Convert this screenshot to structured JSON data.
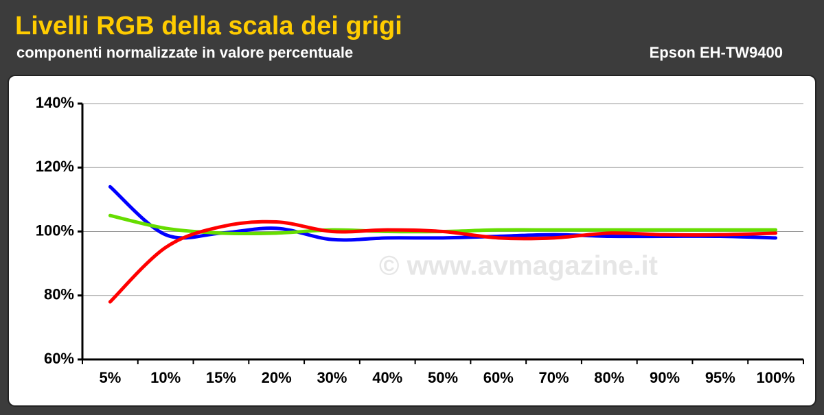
{
  "chart_data": {
    "type": "line",
    "title": "Livelli RGB della scala dei grigi",
    "subtitle": "componenti normalizzate in valore percentuale",
    "device": "Epson EH-TW9400",
    "watermark": "© www.avmagazine.it",
    "categories": [
      "5%",
      "10%",
      "15%",
      "20%",
      "30%",
      "40%",
      "50%",
      "60%",
      "70%",
      "80%",
      "90%",
      "95%",
      "100%"
    ],
    "series": [
      {
        "name": "Blu",
        "color": "#0000ff",
        "values": [
          114,
          99,
          99.5,
          101,
          97.5,
          98,
          98,
          98.5,
          99,
          98.5,
          98.5,
          98.5,
          98
        ]
      },
      {
        "name": "Verde",
        "color": "#66dd00",
        "values": [
          105,
          101,
          99.5,
          99.5,
          100.5,
          100,
          100,
          100.5,
          100.5,
          100.5,
          100.5,
          100.5,
          100.5
        ]
      },
      {
        "name": "Rosso",
        "color": "#ff0000",
        "values": [
          78,
          95,
          101.5,
          103,
          100,
          100.5,
          100,
          98,
          98,
          99.5,
          99,
          99,
          99.5
        ]
      }
    ],
    "ylim": [
      60,
      140
    ],
    "yticks": [
      {
        "value": 60,
        "label": "60%"
      },
      {
        "value": 80,
        "label": "80%"
      },
      {
        "value": 100,
        "label": "100%"
      },
      {
        "value": 120,
        "label": "120%"
      },
      {
        "value": 140,
        "label": "140%"
      }
    ],
    "grid": true
  }
}
